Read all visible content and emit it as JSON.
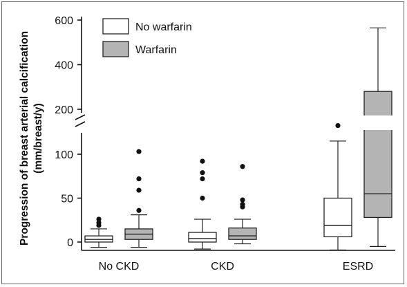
{
  "chart_data": {
    "type": "boxplot",
    "ylabel_lines": [
      "Progression of breast arterial calcification",
      "(mm/breast/y)"
    ],
    "y_axis": {
      "break": true,
      "lower_range": [
        0,
        125
      ],
      "upper_range": [
        200,
        600
      ],
      "ticks_lower": [
        0,
        50,
        100
      ],
      "ticks_upper": [
        200,
        400,
        600
      ]
    },
    "categories": [
      "No CKD",
      "CKD",
      "ESRD"
    ],
    "legend": {
      "placement": "top-left",
      "entries": [
        {
          "name": "No warfarin",
          "color": "#ffffff"
        },
        {
          "name": "Warfarin",
          "color": "#b4b4b4"
        }
      ]
    },
    "series": [
      {
        "name": "No warfarin",
        "color": "#ffffff",
        "boxes": [
          {
            "category": "No CKD",
            "whisker_low": -6,
            "q1": 0,
            "median": 3,
            "q3": 7,
            "whisker_high": 15,
            "outliers": [
              19,
              22,
              26
            ]
          },
          {
            "category": "CKD",
            "whisker_low": -8,
            "q1": 0,
            "median": 4,
            "q3": 11,
            "whisker_high": 26,
            "outliers": [
              50,
              72,
              79,
              92
            ]
          },
          {
            "category": "ESRD",
            "whisker_low": -9,
            "q1": 6,
            "median": 19,
            "q3": 50,
            "whisker_high": 115,
            "outliers": [
              127
            ]
          }
        ]
      },
      {
        "name": "Warfarin",
        "color": "#b4b4b4",
        "boxes": [
          {
            "category": "No CKD",
            "whisker_low": -6,
            "q1": 3,
            "median": 9,
            "q3": 15,
            "whisker_high": 31,
            "outliers": [
              36,
              59,
              72,
              103
            ]
          },
          {
            "category": "CKD",
            "whisker_low": -2,
            "q1": 3,
            "median": 7,
            "q3": 16,
            "whisker_high": 26,
            "outliers": [
              40,
              43,
              48,
              86
            ]
          },
          {
            "category": "ESRD",
            "whisker_low": -5,
            "q1": 28,
            "median": 55,
            "q3": 280,
            "whisker_high": 565,
            "outliers": []
          }
        ]
      }
    ]
  },
  "colors": {
    "axis": "#111111",
    "box_stroke": "#222222",
    "outlier": "#111111",
    "frame": "#666666"
  }
}
